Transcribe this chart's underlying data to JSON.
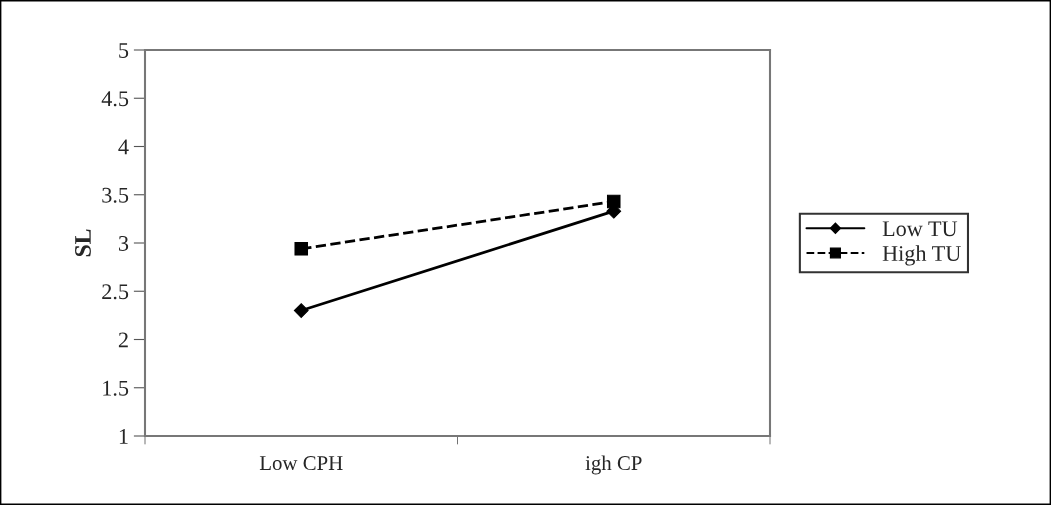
{
  "chart_data": {
    "type": "line",
    "ylabel": "SL",
    "categories": [
      "Low CPH",
      "igh CP"
    ],
    "series": [
      {
        "name": "Low TU",
        "color": "#000000",
        "values": [
          2.3,
          3.33
        ],
        "marker": "diamond",
        "line_style": "solid"
      },
      {
        "name": "High TU",
        "color": "#000000",
        "values": [
          2.94,
          3.43
        ],
        "marker": "square",
        "line_style": "dashed"
      }
    ],
    "ylim": [
      1,
      5
    ],
    "yticks": [
      1,
      1.5,
      2,
      2.5,
      3,
      3.5,
      4,
      4.5,
      5
    ],
    "grid": false,
    "legend": "right"
  }
}
